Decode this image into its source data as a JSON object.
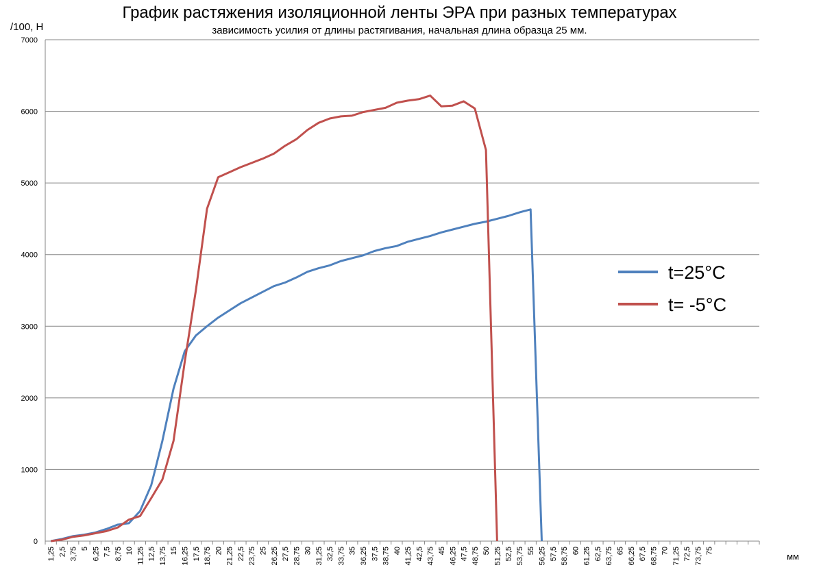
{
  "chart_data": {
    "type": "line",
    "title": "График растяжения изоляционной ленты ЭРА при разных температурах",
    "subtitle": "зависимость усилия от длины растягивания, начальная длина образца 25 мм.",
    "y_label": "/100, Н",
    "x_label": "мм",
    "categories": [
      "1,25",
      "2,5",
      "3,75",
      "5",
      "6,25",
      "7,5",
      "8,75",
      "10",
      "11,25",
      "12,5",
      "13,75",
      "15",
      "16,25",
      "17,5",
      "18,75",
      "20",
      "21,25",
      "22,5",
      "23,75",
      "25",
      "26,25",
      "27,5",
      "28,75",
      "30",
      "31,25",
      "32,5",
      "33,75",
      "35",
      "36,25",
      "37,5",
      "38,75",
      "40",
      "41,25",
      "42,5",
      "43,75",
      "45",
      "46,25",
      "47,5",
      "48,75",
      "50",
      "51,25",
      "52,5",
      "53,75",
      "55",
      "56,25",
      "57,5",
      "58,75",
      "60",
      "61,25",
      "62,5",
      "63,75",
      "65",
      "66,25",
      "67,5",
      "68,75",
      "70",
      "71,25",
      "72,5",
      "73,75",
      "75",
      null,
      null,
      null,
      null
    ],
    "series": [
      {
        "name": "t=25°C",
        "color": "#4f81bd",
        "values": [
          0,
          30,
          70,
          90,
          120,
          170,
          230,
          250,
          420,
          780,
          1400,
          2130,
          2650,
          2870,
          3000,
          3120,
          3220,
          3320,
          3400,
          3480,
          3560,
          3610,
          3680,
          3760,
          3810,
          3850,
          3910,
          3950,
          3990,
          4050,
          4090,
          4120,
          4180,
          4220,
          4260,
          4310,
          4350,
          4390,
          4430,
          4460,
          4500,
          4540,
          4590,
          4630,
          0,
          null,
          null,
          null,
          null,
          null,
          null,
          null,
          null,
          null,
          null,
          null,
          null,
          null,
          null,
          null,
          null,
          null,
          null,
          null
        ]
      },
      {
        "name": "t= -5°C",
        "color": "#c0504d",
        "values": [
          0,
          20,
          60,
          80,
          110,
          140,
          190,
          300,
          350,
          600,
          860,
          1400,
          2500,
          3500,
          4640,
          5080,
          5150,
          5220,
          5280,
          5340,
          5410,
          5520,
          5610,
          5740,
          5840,
          5900,
          5930,
          5940,
          5990,
          6020,
          6050,
          6120,
          6150,
          6170,
          6220,
          6070,
          6080,
          6140,
          6040,
          5460,
          0,
          null,
          null,
          null,
          null,
          null,
          null,
          null,
          null,
          null,
          null,
          null,
          null,
          null,
          null,
          null,
          null,
          null,
          null,
          null,
          null,
          null,
          null,
          null
        ]
      }
    ],
    "ylim": [
      0,
      7000
    ],
    "yticks": [
      0,
      1000,
      2000,
      3000,
      4000,
      5000,
      6000,
      7000
    ],
    "grid": true,
    "legend": "right"
  }
}
